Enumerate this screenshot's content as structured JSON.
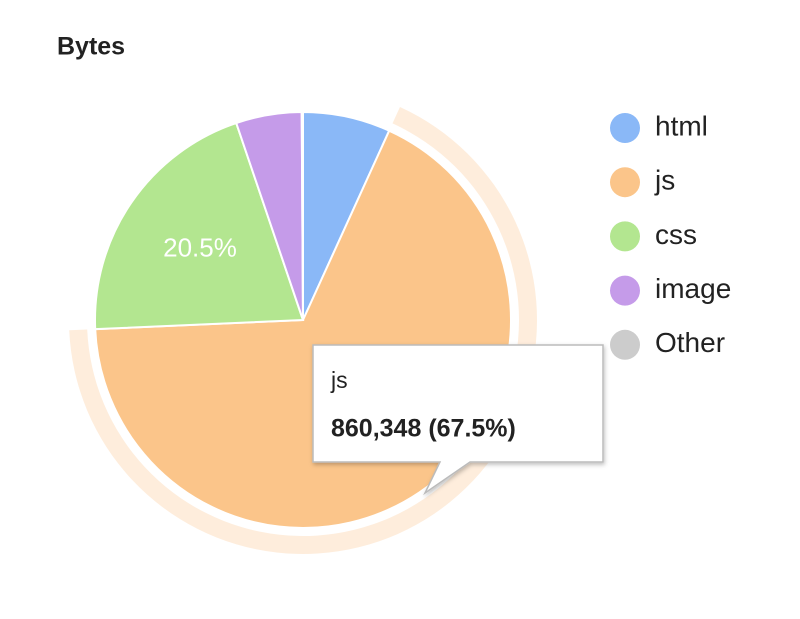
{
  "chart_data": {
    "type": "pie",
    "title": "Bytes",
    "categories": [
      "html",
      "js",
      "css",
      "image",
      "Other"
    ],
    "values": [
      6.8,
      67.5,
      20.5,
      5.1,
      0.1
    ],
    "value_labels": [
      null,
      null,
      "20.5%",
      null,
      null
    ],
    "colors": [
      "#8ab8f7",
      "#fbc58a",
      "#b3e690",
      "#c59be9",
      "#cccccc"
    ],
    "highlight": "js",
    "legend": "right",
    "tooltip": {
      "title": "js",
      "text": "860,348 (67.5%)"
    }
  }
}
